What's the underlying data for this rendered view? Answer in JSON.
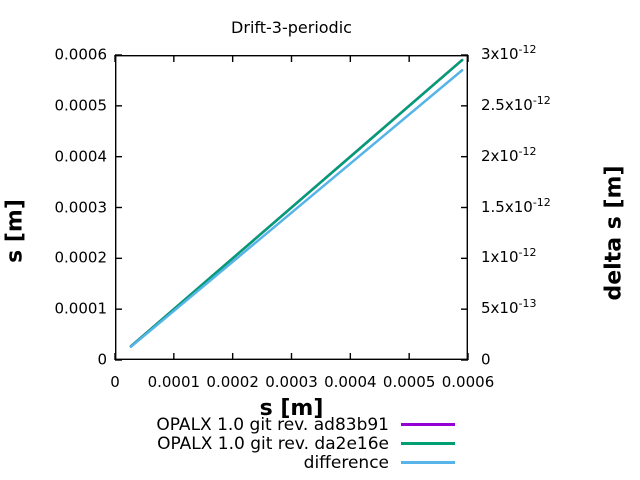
{
  "title": "Drift-3-periodic",
  "chart_data": {
    "type": "line",
    "title": "Drift-3-periodic",
    "grid": false,
    "background": "#ffffff",
    "border_color": "#000000",
    "x_axis": {
      "label": "s [m]",
      "range": [
        0,
        0.0006
      ],
      "ticks": [
        {
          "v": 0,
          "label": "0"
        },
        {
          "v": 0.0001,
          "label": "0.0001"
        },
        {
          "v": 0.0002,
          "label": "0.0002"
        },
        {
          "v": 0.0003,
          "label": "0.0003"
        },
        {
          "v": 0.0004,
          "label": "0.0004"
        },
        {
          "v": 0.0005,
          "label": "0.0005"
        },
        {
          "v": 0.0006,
          "label": "0.0006"
        }
      ]
    },
    "y_left": {
      "label": "s [m]",
      "range": [
        0,
        0.0006
      ],
      "ticks": [
        {
          "v": 0,
          "label": "0"
        },
        {
          "v": 0.0001,
          "label": "0.0001"
        },
        {
          "v": 0.0002,
          "label": "0.0002"
        },
        {
          "v": 0.0003,
          "label": "0.0003"
        },
        {
          "v": 0.0004,
          "label": "0.0004"
        },
        {
          "v": 0.0005,
          "label": "0.0005"
        },
        {
          "v": 0.0006,
          "label": "0.0006"
        }
      ]
    },
    "y_right": {
      "label": "delta s [m]",
      "range": [
        0,
        3e-12
      ],
      "ticks": [
        {
          "v": 0,
          "base": "0",
          "exp": ""
        },
        {
          "v": 5e-13,
          "base": "5x10",
          "exp": "-13"
        },
        {
          "v": 1e-12,
          "base": "1x10",
          "exp": "-12"
        },
        {
          "v": 1.5e-12,
          "base": "1.5x10",
          "exp": "-12"
        },
        {
          "v": 2e-12,
          "base": "2x10",
          "exp": "-12"
        },
        {
          "v": 2.5e-12,
          "base": "2.5x10",
          "exp": "-12"
        },
        {
          "v": 3e-12,
          "base": "3x10",
          "exp": "-12"
        }
      ]
    },
    "series": [
      {
        "name": "OPALX 1.0 git rev. ad83b91",
        "color": "#9400d3",
        "axis": "left",
        "x": [
          2.7e-05,
          0.00059
        ],
        "y": [
          2.7e-05,
          0.00059
        ]
      },
      {
        "name": "OPALX 1.0 git rev. da2e16e",
        "color": "#009e73",
        "axis": "left",
        "x": [
          2.7e-05,
          0.00059
        ],
        "y": [
          2.7e-05,
          0.00059
        ]
      },
      {
        "name": "difference",
        "color": "#56b4e9",
        "axis": "right",
        "x": [
          2.7e-05,
          0.00059
        ],
        "y": [
          1.3e-13,
          2.85e-12
        ]
      }
    ],
    "legend": {
      "position": "below-right"
    }
  }
}
